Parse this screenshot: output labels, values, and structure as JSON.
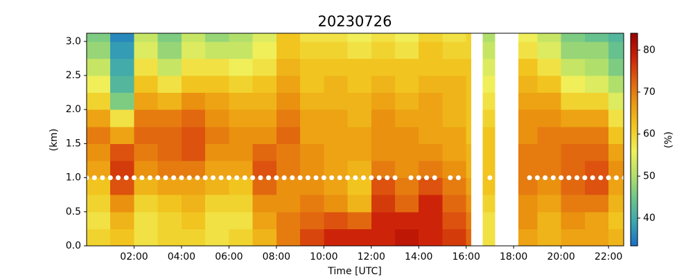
{
  "chart_data": {
    "type": "heatmap",
    "title": "20230726",
    "x_label": "Time [UTC]",
    "y_label": "(km)",
    "colorbar_label": "(%)",
    "x_edges": [
      0,
      1,
      2,
      3,
      4,
      5,
      6,
      7,
      8,
      9,
      10,
      11,
      12,
      13,
      14,
      15,
      16,
      16.2,
      16.7,
      17.2,
      18.2,
      19,
      20,
      21,
      22,
      22.64
    ],
    "y_edges": [
      0,
      0.25,
      0.5,
      0.75,
      1.0,
      1.25,
      1.5,
      1.75,
      2.0,
      2.25,
      2.5,
      2.75,
      3.0,
      3.12
    ],
    "values": [
      [
        60,
        62,
        58,
        60,
        60,
        58,
        60,
        64,
        70,
        75,
        78,
        78,
        78,
        80,
        78,
        76,
        72,
        null,
        58,
        null,
        66,
        64,
        66,
        66,
        64
      ],
      [
        58,
        64,
        58,
        60,
        62,
        58,
        58,
        66,
        70,
        72,
        74,
        72,
        78,
        78,
        78,
        74,
        70,
        null,
        58,
        null,
        68,
        64,
        68,
        66,
        62
      ],
      [
        60,
        68,
        60,
        62,
        64,
        60,
        60,
        68,
        68,
        70,
        68,
        64,
        76,
        72,
        78,
        72,
        68,
        null,
        60,
        null,
        68,
        66,
        70,
        70,
        64
      ],
      [
        62,
        74,
        64,
        66,
        66,
        64,
        62,
        72,
        68,
        68,
        66,
        62,
        74,
        70,
        74,
        70,
        66,
        null,
        62,
        null,
        70,
        68,
        72,
        74,
        66
      ],
      [
        66,
        76,
        68,
        70,
        70,
        66,
        66,
        74,
        70,
        68,
        66,
        64,
        70,
        68,
        70,
        68,
        64,
        null,
        62,
        null,
        70,
        70,
        72,
        74,
        68
      ],
      [
        68,
        74,
        70,
        72,
        74,
        68,
        68,
        72,
        70,
        68,
        66,
        66,
        68,
        68,
        68,
        66,
        64,
        null,
        62,
        null,
        70,
        70,
        72,
        72,
        66
      ],
      [
        70,
        66,
        72,
        72,
        74,
        70,
        68,
        68,
        72,
        66,
        66,
        66,
        68,
        68,
        66,
        66,
        62,
        null,
        62,
        null,
        68,
        70,
        70,
        70,
        62
      ],
      [
        66,
        58,
        70,
        70,
        72,
        68,
        66,
        66,
        70,
        66,
        66,
        64,
        68,
        66,
        66,
        64,
        62,
        null,
        60,
        null,
        68,
        68,
        66,
        66,
        58
      ],
      [
        60,
        46,
        66,
        64,
        68,
        66,
        64,
        64,
        68,
        64,
        64,
        64,
        66,
        64,
        66,
        64,
        62,
        null,
        58,
        null,
        66,
        66,
        60,
        60,
        54
      ],
      [
        56,
        42,
        62,
        58,
        62,
        62,
        60,
        62,
        66,
        62,
        64,
        62,
        64,
        62,
        64,
        64,
        62,
        null,
        56,
        null,
        64,
        62,
        56,
        54,
        50
      ],
      [
        52,
        40,
        58,
        52,
        58,
        58,
        56,
        58,
        64,
        62,
        62,
        62,
        62,
        62,
        62,
        62,
        62,
        null,
        54,
        null,
        62,
        58,
        52,
        50,
        46
      ],
      [
        48,
        38,
        54,
        48,
        54,
        52,
        52,
        56,
        62,
        60,
        60,
        58,
        60,
        58,
        62,
        60,
        60,
        null,
        52,
        null,
        58,
        54,
        48,
        48,
        44
      ],
      [
        46,
        36,
        52,
        46,
        52,
        48,
        50,
        54,
        62,
        58,
        58,
        56,
        58,
        56,
        60,
        58,
        60,
        null,
        50,
        null,
        56,
        52,
        46,
        44,
        42
      ]
    ],
    "colormap": [
      "#1a6fc4",
      "#3aa6b0",
      "#6cc58a",
      "#b4e06a",
      "#f0f05a",
      "#f2c820",
      "#ec9a10",
      "#e06010",
      "#cc2008",
      "#9a0000"
    ],
    "clim": [
      33.4,
      84
    ],
    "cticks": [
      40,
      50,
      60,
      70,
      80
    ],
    "points": {
      "color": "#ffffff",
      "x": [
        0,
        0.33,
        0.67,
        1,
        1.33,
        1.67,
        2,
        2.33,
        2.67,
        3,
        3.33,
        3.67,
        4,
        4.33,
        4.67,
        5,
        5.33,
        5.67,
        6,
        6.33,
        6.67,
        7,
        7.33,
        7.67,
        8,
        8.33,
        8.67,
        9,
        9.33,
        9.67,
        10,
        10.33,
        10.67,
        11,
        11.33,
        11.67,
        12,
        12.33,
        12.67,
        13,
        13.67,
        14,
        14.33,
        14.67,
        15.33,
        15.67,
        17,
        18.67,
        19,
        19.33,
        19.67,
        20,
        20.33,
        20.67,
        21,
        21.33,
        21.67,
        22,
        22.33,
        22.67
      ],
      "y": [
        1,
        1,
        1,
        1,
        1,
        1,
        1,
        1,
        1,
        1,
        1,
        1,
        1,
        1,
        1,
        1,
        1,
        1,
        1,
        1,
        1,
        1,
        1,
        1,
        1,
        1,
        1,
        1,
        1,
        1,
        1,
        1,
        1,
        1,
        1,
        1,
        1,
        1,
        1,
        1,
        1,
        1,
        1,
        1,
        1,
        1,
        1,
        1,
        1,
        1,
        1,
        1,
        1,
        1,
        1,
        1,
        1,
        1,
        1,
        1
      ]
    },
    "xlim": [
      0,
      22.64
    ],
    "ylim": [
      0,
      3.12
    ],
    "xticks": [
      {
        "value": 2,
        "label": "02:00"
      },
      {
        "value": 4,
        "label": "04:00"
      },
      {
        "value": 6,
        "label": "06:00"
      },
      {
        "value": 8,
        "label": "08:00"
      },
      {
        "value": 10,
        "label": "10:00"
      },
      {
        "value": 12,
        "label": "12:00"
      },
      {
        "value": 14,
        "label": "14:00"
      },
      {
        "value": 16,
        "label": "16:00"
      },
      {
        "value": 18,
        "label": "18:00"
      },
      {
        "value": 20,
        "label": "20:00"
      },
      {
        "value": 22,
        "label": "22:00"
      }
    ],
    "yticks": [
      {
        "value": 0,
        "label": "0.0"
      },
      0.5,
      {
        "value": 1,
        "label": "1.0"
      },
      1.5,
      {
        "value": 2,
        "label": "2.0"
      },
      2.5,
      {
        "value": 3,
        "label": "3.0"
      }
    ]
  }
}
